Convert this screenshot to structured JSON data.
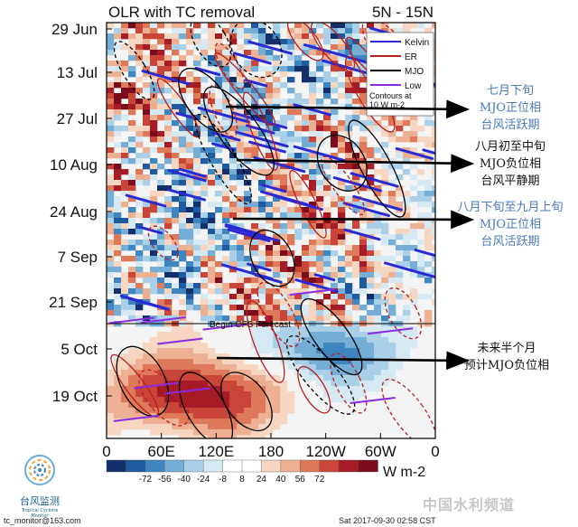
{
  "chart_data": {
    "type": "heatmap",
    "title": "OLR with TC removal",
    "region_label": "5N - 15N",
    "x_ticks": [
      "0",
      "60E",
      "120E",
      "180",
      "120W",
      "60W",
      "0"
    ],
    "y_ticks": [
      "29 Jun",
      "13 Jul",
      "27 Jul",
      "10 Aug",
      "24 Aug",
      "7 Sep",
      "21 Sep",
      "5 Oct",
      "19 Oct"
    ],
    "forecast_label": "Begin CFS Forecast",
    "legend": [
      {
        "name": "Kelvin",
        "color": "#2b2bd6"
      },
      {
        "name": "ER",
        "color": "#b81e1e"
      },
      {
        "name": "MJO",
        "color": "#000000"
      },
      {
        "name": "Low",
        "color": "#8a2be2"
      }
    ],
    "contour_note": "Contours at 10 W m-2",
    "colorbar": {
      "ticks": [
        "-72",
        "-56",
        "-40",
        "-24",
        "-8",
        "8",
        "24",
        "40",
        "56",
        "72"
      ],
      "unit": "W m-2",
      "colors": [
        "#14306b",
        "#1f5a9e",
        "#3f86c0",
        "#74aed6",
        "#a9d0e6",
        "#d6e9f2",
        "#ffffff",
        "#ffffff",
        "#f6d5c1",
        "#eeb093",
        "#de7a5a",
        "#c84537",
        "#a51c27",
        "#7a0c1e"
      ]
    }
  },
  "annotations": [
    {
      "lines": [
        "七月下旬",
        "MJO正位相",
        "台风活跃期"
      ],
      "color": "blue"
    },
    {
      "lines": [
        "八月初至中旬",
        "MJO负位相",
        "台风平静期"
      ],
      "color": "black"
    },
    {
      "lines": [
        "八月下旬至九月上旬",
        "MJO正位相",
        "台风活跃期"
      ],
      "color": "blue"
    },
    {
      "lines": [
        "未来半个月",
        "预计MJO负位相"
      ],
      "color": "black"
    }
  ],
  "logo": {
    "text": "台风监测",
    "subtext": "Tropical Cyclone Monitor"
  },
  "footer": {
    "email": "tc_monitor@163.com",
    "timestamp": "Sat 2017-09-30 02:58 CST",
    "watermark": "中国水利频道"
  }
}
